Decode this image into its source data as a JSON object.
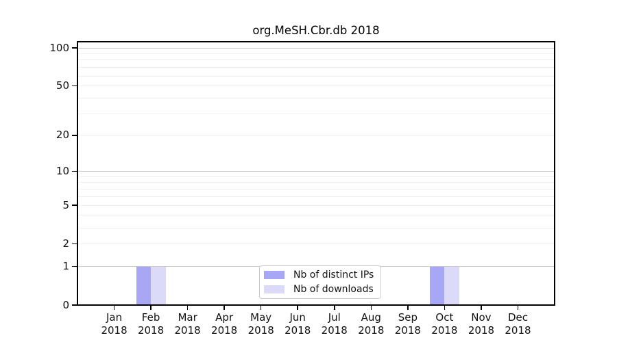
{
  "chart_data": {
    "type": "bar",
    "title": "org.MeSH.Cbr.db 2018",
    "x_categories": [
      {
        "month": "Jan",
        "year": "2018"
      },
      {
        "month": "Feb",
        "year": "2018"
      },
      {
        "month": "Mar",
        "year": "2018"
      },
      {
        "month": "Apr",
        "year": "2018"
      },
      {
        "month": "May",
        "year": "2018"
      },
      {
        "month": "Jun",
        "year": "2018"
      },
      {
        "month": "Jul",
        "year": "2018"
      },
      {
        "month": "Aug",
        "year": "2018"
      },
      {
        "month": "Sep",
        "year": "2018"
      },
      {
        "month": "Oct",
        "year": "2018"
      },
      {
        "month": "Nov",
        "year": "2018"
      },
      {
        "month": "Dec",
        "year": "2018"
      }
    ],
    "series": [
      {
        "name": "Nb of distinct IPs",
        "color": "#a7a7f6",
        "values": [
          0,
          1,
          0,
          0,
          0,
          0,
          0,
          0,
          0,
          1,
          0,
          0
        ]
      },
      {
        "name": "Nb of downloads",
        "color": "#dbdbf9",
        "values": [
          0,
          1,
          0,
          0,
          0,
          0,
          0,
          0,
          0,
          1,
          0,
          0
        ]
      }
    ],
    "y_scale": "log1p",
    "ylim": [
      0,
      100
    ],
    "y_tick_values": [
      0,
      1,
      2,
      5,
      10,
      20,
      50,
      100
    ],
    "y_gridlines": {
      "decade": [
        1,
        10,
        100
      ],
      "other": [
        2,
        3,
        4,
        5,
        6,
        7,
        8,
        9,
        20,
        30,
        40,
        50,
        60,
        70,
        80,
        90
      ]
    },
    "grid": "horizontal",
    "legend_position": "bottom-center-inside"
  },
  "colors": {
    "decade_gridline": "#c7c7c7",
    "other_gridline": "#efefef",
    "spine": "#000000",
    "tick": "#000000",
    "text": "#111111",
    "legend_border": "#cccccc",
    "legend_background": "#ffffff"
  }
}
